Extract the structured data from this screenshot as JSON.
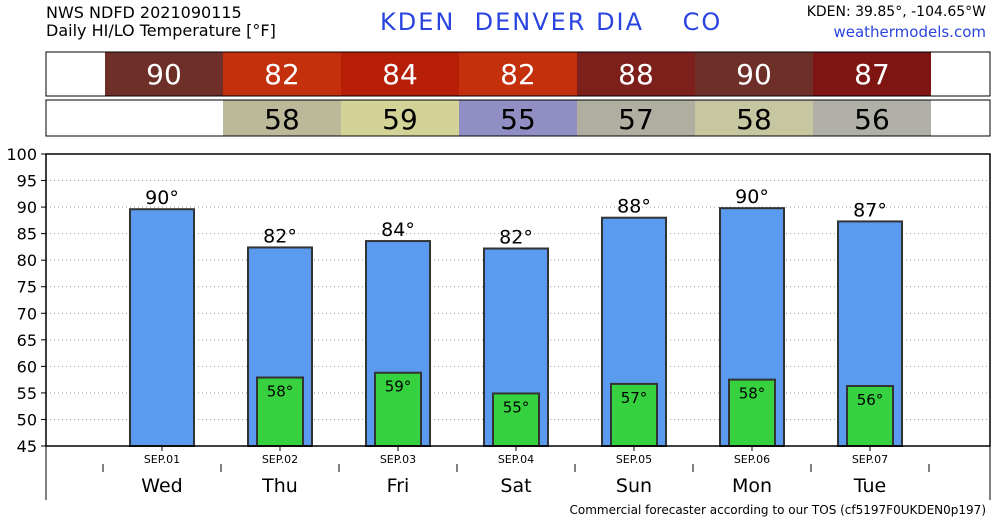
{
  "header": {
    "line1": "NWS NDFD 2021090115",
    "line2": "Daily HI/LO Temperature [°F]",
    "station": "KDEN  DENVER DIA    CO",
    "coords": "KDEN: 39.85°, -104.65°W",
    "site": "weathermodels.com"
  },
  "footer": "Commercial forecaster according to our TOS (cf5197F0UKDEN0p197)",
  "colors": {
    "high_bar": "#5b9bef",
    "low_bar": "#35d13e",
    "high_cells": [
      "#6e2f28",
      "#c42f0c",
      "#b71e08",
      "#c42f0c",
      "#7d1f1b",
      "#6e2f28",
      "#7f1513"
    ],
    "low_cells": [
      "#bcb99b",
      "#d3d398",
      "#908ec2",
      "#b0aea1",
      "#c6c6a0",
      "#b0b0a8"
    ]
  },
  "chart_data": {
    "type": "bar",
    "dates": [
      "SEP.01",
      "SEP.02",
      "SEP.03",
      "SEP.04",
      "SEP.05",
      "SEP.06",
      "SEP.07"
    ],
    "days": [
      "Wed",
      "Thu",
      "Fri",
      "Sat",
      "Sun",
      "Mon",
      "Tue"
    ],
    "ylim": [
      45,
      100
    ],
    "yticks": [
      45,
      50,
      55,
      60,
      65,
      70,
      75,
      80,
      85,
      90,
      95,
      100
    ],
    "grid": true,
    "series": [
      {
        "values": [
          89.6,
          82.4,
          83.6,
          82.2,
          88.0,
          89.8,
          87.3
        ],
        "labels": [
          "90°",
          "82°",
          "84°",
          "82°",
          "88°",
          "90°",
          "87°"
        ]
      },
      {
        "values": [
          null,
          57.9,
          58.8,
          54.9,
          56.7,
          57.5,
          56.3
        ],
        "labels": [
          "",
          "58°",
          "59°",
          "55°",
          "57°",
          "58°",
          "56°"
        ]
      }
    ],
    "high_row": [
      "90",
      "82",
      "84",
      "82",
      "88",
      "90",
      "87"
    ],
    "low_row": [
      "",
      "58",
      "59",
      "55",
      "57",
      "58",
      "56"
    ]
  }
}
